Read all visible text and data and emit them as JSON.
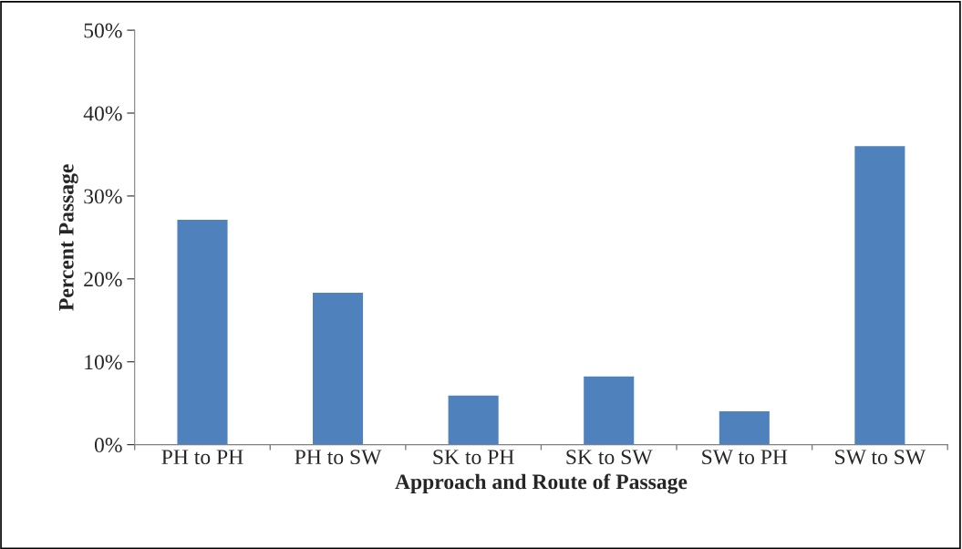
{
  "chart_data": {
    "type": "bar",
    "xlabel": "Approach and Route of Passage",
    "ylabel": "Percent Passage",
    "categories": [
      "PH to PH",
      "PH to SW",
      "SK to PH",
      "SK to SW",
      "SW to PH",
      "SW to SW"
    ],
    "values": [
      27.2,
      18.4,
      6.0,
      8.3,
      4.1,
      36.1
    ],
    "color": "#4f81bd",
    "ylim": [
      0,
      50
    ],
    "yticks": [
      {
        "value": 0,
        "label": "0%"
      },
      {
        "value": 10,
        "label": "10%"
      },
      {
        "value": 20,
        "label": "20%"
      },
      {
        "value": 30,
        "label": "30%"
      },
      {
        "value": 40,
        "label": "40%"
      },
      {
        "value": 50,
        "label": "50%"
      }
    ],
    "grid": false,
    "legend": false
  }
}
